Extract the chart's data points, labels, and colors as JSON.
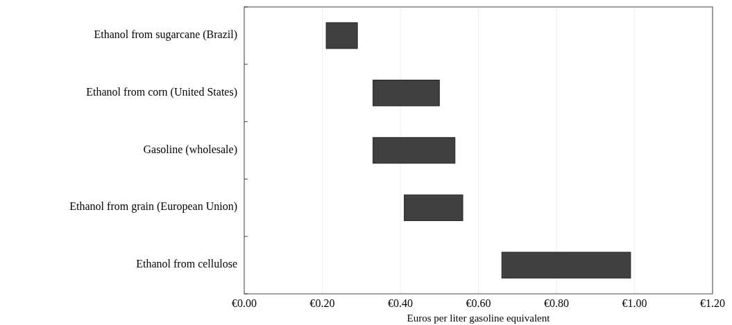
{
  "chart_data": {
    "type": "bar",
    "orientation": "horizontal",
    "xlabel": "Euros per liter gasoline equivalent",
    "categories": [
      "Ethanol from sugarcane (Brazil)",
      "Ethanol from corn (United States)",
      "Gasoline (wholesale)",
      "Ethanol from grain (European Union)",
      "Ethanol from cellulose"
    ],
    "base": [
      0.21,
      0.33,
      0.33,
      0.41,
      0.66
    ],
    "values": [
      0.08,
      0.17,
      0.21,
      0.15,
      0.33
    ],
    "color": "#404040",
    "xlim": [
      0,
      1.2
    ],
    "xticks": [
      {
        "value": 0,
        "label": "€0.00"
      },
      {
        "value": 0.2,
        "label": "€0.20"
      },
      {
        "value": 0.4,
        "label": "€0.40"
      },
      {
        "value": 0.6,
        "label": "€0.60"
      },
      {
        "value": 0.8,
        "label": "€0.80"
      },
      {
        "value": 1,
        "label": "€1.00"
      },
      {
        "value": 1.2,
        "label": "€1.20"
      }
    ],
    "grid": "x"
  }
}
